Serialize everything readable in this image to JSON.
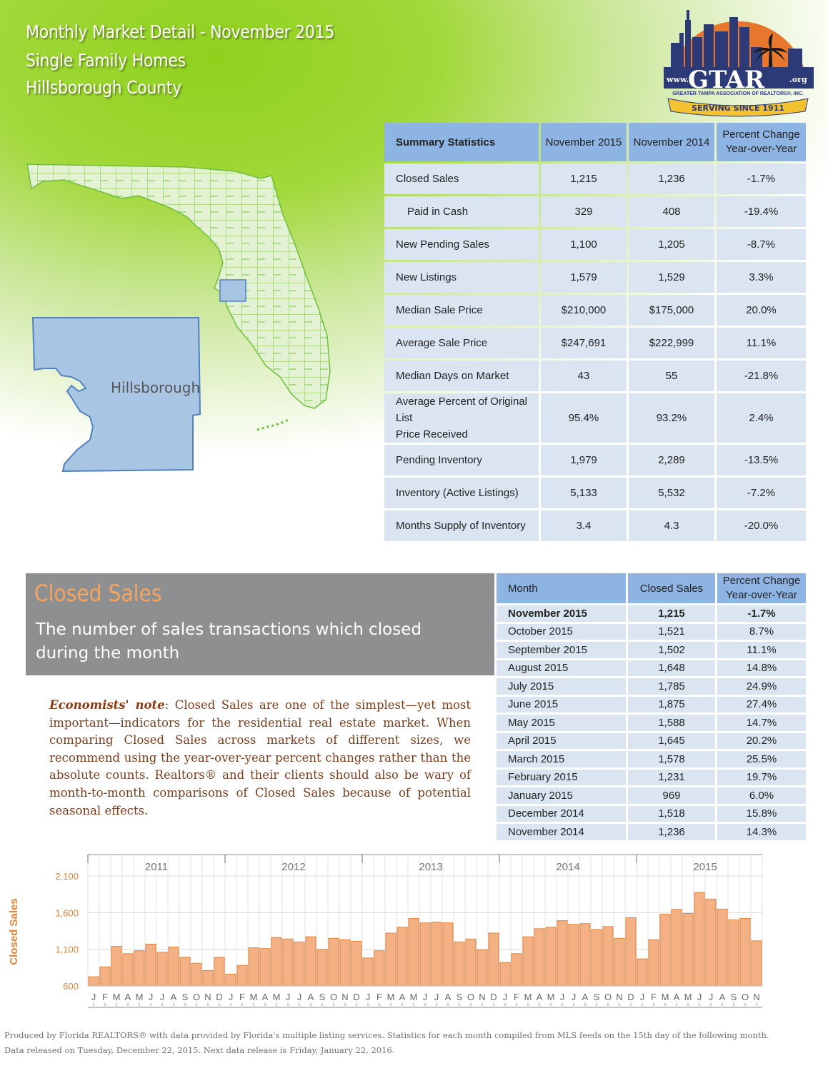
{
  "header": {
    "title_lines": [
      "Monthly Market Detail - November 2015",
      "Single Family Homes",
      "Hillsborough County"
    ]
  },
  "logo": {
    "www": "www.",
    "name": "GTAR",
    "org": ".org",
    "full_name": "GREATER TAMPA ASSOCIATION OF REALTORS®, INC.",
    "banner": "SERVING SINCE 1911"
  },
  "map": {
    "county_label": "Hillsborough"
  },
  "summary": {
    "headers": [
      "Summary Statistics",
      "November 2015",
      "November 2014",
      "Percent Change",
      "Year-over-Year"
    ],
    "rows": [
      {
        "label": "Closed Sales",
        "cur": "1,215",
        "prev": "1,236",
        "pct": "-1.7%"
      },
      {
        "label": "Paid in Cash",
        "cur": "329",
        "prev": "408",
        "pct": "-19.4%"
      },
      {
        "label": "New Pending Sales",
        "cur": "1,100",
        "prev": "1,205",
        "pct": "-8.7%"
      },
      {
        "label": "New Listings",
        "cur": "1,579",
        "prev": "1,529",
        "pct": "3.3%"
      },
      {
        "label": "Median Sale Price",
        "cur": "$210,000",
        "prev": "$175,000",
        "pct": "20.0%"
      },
      {
        "label": "Average Sale Price",
        "cur": "$247,691",
        "prev": "$222,999",
        "pct": "11.1%"
      },
      {
        "label": "Median Days on Market",
        "cur": "43",
        "prev": "55",
        "pct": "-21.8%"
      },
      {
        "label": "Average Percent of Original List",
        "label2": "Price Received",
        "cur": "95.4%",
        "prev": "93.2%",
        "pct": "2.4%"
      },
      {
        "label": "Pending Inventory",
        "cur": "1,979",
        "prev": "2,289",
        "pct": "-13.5%"
      },
      {
        "label": "Inventory (Active Listings)",
        "cur": "5,133",
        "prev": "5,532",
        "pct": "-7.2%"
      },
      {
        "label": "Months Supply of Inventory",
        "cur": "3.4",
        "prev": "4.3",
        "pct": "-20.0%"
      }
    ]
  },
  "closed_sales": {
    "title": "Closed Sales",
    "subtitle": "The number of sales transactions which closed during the month",
    "note_lead": "Economists' note",
    "note_sep": ":",
    "note_text": "Closed Sales are one of the simplest—yet most important—indicators for the residential real estate market. When comparing Closed Sales across markets of different sizes, we recommend using the year-over-year percent changes rather than the absolute counts. Realtors® and their clients should also be wary of month-to-month comparisons of Closed Sales because of potential seasonal effects."
  },
  "monthly": {
    "headers": [
      "Month",
      "Closed Sales",
      "Percent Change",
      "Year-over-Year"
    ],
    "rows": [
      {
        "month": "November 2015",
        "sales": "1,215",
        "pct": "-1.7%"
      },
      {
        "month": "October 2015",
        "sales": "1,521",
        "pct": "8.7%"
      },
      {
        "month": "September 2015",
        "sales": "1,502",
        "pct": "11.1%"
      },
      {
        "month": "August 2015",
        "sales": "1,648",
        "pct": "14.8%"
      },
      {
        "month": "July 2015",
        "sales": "1,785",
        "pct": "24.9%"
      },
      {
        "month": "June 2015",
        "sales": "1,875",
        "pct": "27.4%"
      },
      {
        "month": "May 2015",
        "sales": "1,588",
        "pct": "14.7%"
      },
      {
        "month": "April 2015",
        "sales": "1,645",
        "pct": "20.2%"
      },
      {
        "month": "March 2015",
        "sales": "1,578",
        "pct": "25.5%"
      },
      {
        "month": "February 2015",
        "sales": "1,231",
        "pct": "19.7%"
      },
      {
        "month": "January 2015",
        "sales": "969",
        "pct": "6.0%"
      },
      {
        "month": "December 2014",
        "sales": "1,518",
        "pct": "15.8%"
      },
      {
        "month": "November 2014",
        "sales": "1,236",
        "pct": "14.3%"
      }
    ]
  },
  "chart_data": {
    "type": "bar",
    "ylabel": "Closed Sales",
    "ylim": [
      600,
      2100
    ],
    "yticks": [
      "600",
      "1,100",
      "1,600",
      "2,100"
    ],
    "grid": true,
    "years": [
      "2011",
      "2012",
      "2013",
      "2014",
      "2015"
    ],
    "categories": [
      "J",
      "F",
      "M",
      "A",
      "M",
      "J",
      "J",
      "A",
      "S",
      "O",
      "N",
      "D",
      "J",
      "F",
      "M",
      "A",
      "M",
      "J",
      "J",
      "A",
      "S",
      "O",
      "N",
      "D",
      "J",
      "F",
      "M",
      "A",
      "M",
      "J",
      "J",
      "A",
      "S",
      "O",
      "N",
      "D",
      "J",
      "F",
      "M",
      "A",
      "M",
      "J",
      "J",
      "A",
      "S",
      "O",
      "N",
      "D",
      "J",
      "F",
      "M",
      "A",
      "M",
      "J",
      "J",
      "A",
      "S",
      "O",
      "N"
    ],
    "values": [
      725,
      860,
      1140,
      1040,
      1080,
      1170,
      1060,
      1130,
      990,
      910,
      810,
      990,
      760,
      880,
      1120,
      1110,
      1260,
      1240,
      1200,
      1270,
      1100,
      1250,
      1230,
      1210,
      980,
      1080,
      1320,
      1400,
      1520,
      1460,
      1470,
      1460,
      1200,
      1240,
      1090,
      1320,
      920,
      1040,
      1270,
      1380,
      1400,
      1490,
      1440,
      1450,
      1370,
      1410,
      1250,
      1530,
      969,
      1231,
      1578,
      1645,
      1588,
      1875,
      1785,
      1648,
      1502,
      1521,
      1215
    ],
    "bar_color": "#f4b183",
    "bar_edge": "#e0843c"
  },
  "footer": {
    "line1": "Produced by Florida REALTORS® with data provided by Florida's multiple listing services. Statistics for each month compiled from MLS feeds on the 15th day of the following month.",
    "line2": "Data released on Tuesday, December 22, 2015. Next data release is Friday, January 22, 2016."
  }
}
